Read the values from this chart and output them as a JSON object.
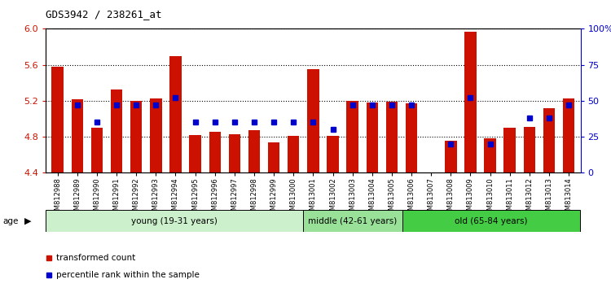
{
  "title": "GDS3942 / 238261_at",
  "samples": [
    "GSM812988",
    "GSM812989",
    "GSM812990",
    "GSM812991",
    "GSM812992",
    "GSM812993",
    "GSM812994",
    "GSM812995",
    "GSM812996",
    "GSM812997",
    "GSM812998",
    "GSM812999",
    "GSM813000",
    "GSM813001",
    "GSM813002",
    "GSM813003",
    "GSM813004",
    "GSM813005",
    "GSM813006",
    "GSM813007",
    "GSM813008",
    "GSM813009",
    "GSM813010",
    "GSM813011",
    "GSM813012",
    "GSM813013",
    "GSM813014"
  ],
  "red_values": [
    5.58,
    5.22,
    4.9,
    5.33,
    5.2,
    5.23,
    5.7,
    4.82,
    4.86,
    4.83,
    4.87,
    4.74,
    4.81,
    5.55,
    4.81,
    5.2,
    5.18,
    5.19,
    5.17,
    4.4,
    4.76,
    5.97,
    4.78,
    4.9,
    4.91,
    5.12,
    5.23
  ],
  "blue_values": [
    null,
    47,
    35,
    47,
    47,
    47,
    52,
    35,
    35,
    35,
    35,
    35,
    35,
    35,
    30,
    47,
    47,
    47,
    47,
    null,
    20,
    52,
    20,
    null,
    38,
    38,
    47
  ],
  "groups": [
    {
      "label": "young (19-31 years)",
      "start": 0,
      "end": 13,
      "color": "#ccf0cc"
    },
    {
      "label": "middle (42-61 years)",
      "start": 13,
      "end": 18,
      "color": "#99e099"
    },
    {
      "label": "old (65-84 years)",
      "start": 18,
      "end": 27,
      "color": "#44cc44"
    }
  ],
  "ylim_left": [
    4.4,
    6.0
  ],
  "ylim_right": [
    0,
    100
  ],
  "yticks_left": [
    4.4,
    4.8,
    5.2,
    5.6,
    6.0
  ],
  "ytick_labels_right": [
    "0",
    "25",
    "50",
    "75",
    "100%"
  ],
  "bar_color": "#cc1100",
  "dot_color": "#0000cc",
  "legend_items": [
    {
      "label": "transformed count",
      "color": "#cc1100"
    },
    {
      "label": "percentile rank within the sample",
      "color": "#0000cc"
    }
  ]
}
